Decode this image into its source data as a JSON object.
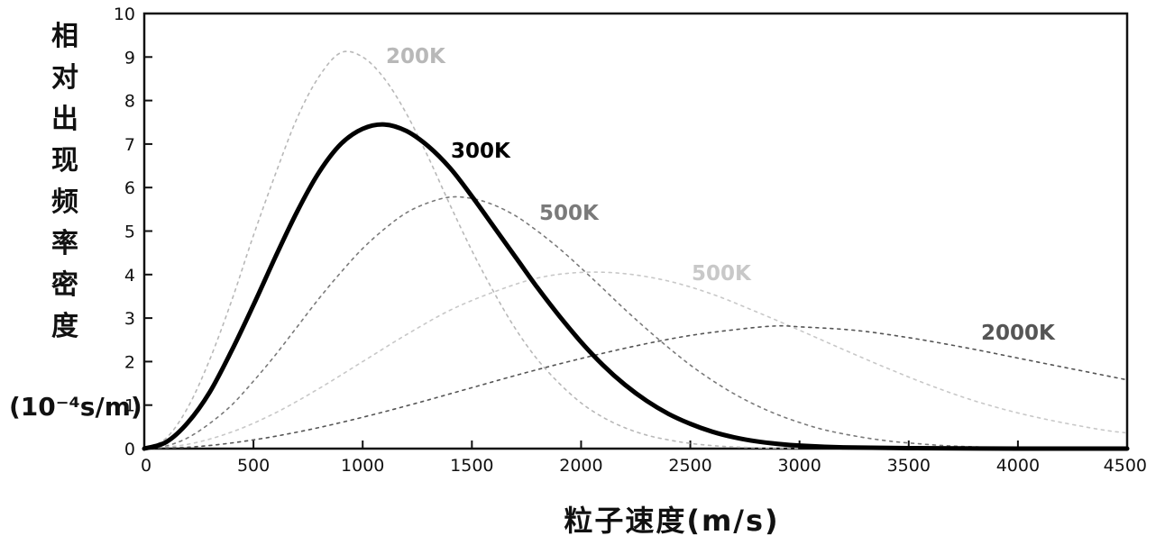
{
  "chart_data": {
    "type": "line",
    "xlabel": "粒子速度(m/s)",
    "ylabel": "相对出现频率密度",
    "ylabel_unit": "(10⁻⁴s/m)",
    "xlim": [
      0,
      4500
    ],
    "ylim": [
      0,
      10
    ],
    "x_ticks": [
      0,
      500,
      1000,
      1500,
      2000,
      2500,
      3000,
      3500,
      4000,
      4500
    ],
    "y_ticks": [
      0,
      1,
      2,
      3,
      4,
      5,
      6,
      7,
      8,
      9,
      10
    ],
    "grid": false,
    "series": [
      {
        "name": "200K",
        "color": "#b8b8b8",
        "style": "dotted",
        "x": [
          0,
          100,
          200,
          300,
          400,
          500,
          600,
          700,
          800,
          900,
          1000,
          1100,
          1200,
          1300,
          1400,
          1500,
          1600,
          1700,
          1800,
          1900,
          2000,
          2100,
          2200,
          2300,
          2400,
          2500,
          2600,
          2700,
          2800,
          2900,
          3000
        ],
        "values": [
          0,
          0.24,
          0.95,
          2.05,
          3.4,
          4.9,
          6.3,
          7.6,
          8.55,
          9.1,
          9.0,
          8.5,
          7.7,
          6.7,
          5.6,
          4.55,
          3.6,
          2.75,
          2.05,
          1.5,
          1.05,
          0.72,
          0.48,
          0.31,
          0.2,
          0.12,
          0.07,
          0.04,
          0.02,
          0.01,
          0.005
        ]
      },
      {
        "name": "300K",
        "color": "#000000",
        "style": "solid",
        "x": [
          0,
          100,
          200,
          300,
          400,
          500,
          600,
          700,
          800,
          900,
          1000,
          1100,
          1200,
          1300,
          1400,
          1500,
          1600,
          1700,
          1800,
          1900,
          2000,
          2100,
          2200,
          2300,
          2400,
          2500,
          2600,
          2700,
          2800,
          2900,
          3000,
          3200,
          3500,
          4000,
          4500
        ],
        "values": [
          0,
          0.15,
          0.6,
          1.3,
          2.25,
          3.3,
          4.4,
          5.45,
          6.35,
          7.0,
          7.35,
          7.45,
          7.3,
          6.95,
          6.45,
          5.8,
          5.1,
          4.4,
          3.7,
          3.05,
          2.45,
          1.92,
          1.47,
          1.1,
          0.8,
          0.57,
          0.39,
          0.26,
          0.17,
          0.11,
          0.07,
          0.03,
          0.01,
          0.0,
          0.0
        ]
      },
      {
        "name": "500K",
        "color": "#7a7a7a",
        "style": "dotted",
        "x": [
          0,
          100,
          200,
          300,
          400,
          500,
          600,
          700,
          800,
          900,
          1000,
          1100,
          1200,
          1300,
          1400,
          1500,
          1600,
          1700,
          1800,
          1900,
          2000,
          2100,
          2200,
          2300,
          2400,
          2500,
          2600,
          2700,
          2800,
          2900,
          3000,
          3100,
          3200,
          3300,
          3400,
          3500,
          3700,
          4000,
          4500
        ],
        "values": [
          0,
          0.06,
          0.25,
          0.58,
          1.0,
          1.55,
          2.15,
          2.8,
          3.45,
          4.05,
          4.6,
          5.05,
          5.42,
          5.65,
          5.78,
          5.75,
          5.6,
          5.35,
          5.0,
          4.6,
          4.15,
          3.68,
          3.2,
          2.75,
          2.32,
          1.92,
          1.57,
          1.26,
          1.0,
          0.78,
          0.6,
          0.45,
          0.34,
          0.25,
          0.18,
          0.13,
          0.06,
          0.02,
          0.0
        ]
      },
      {
        "name": "500K",
        "color": "#c8c8c8",
        "style": "dotted",
        "x": [
          0,
          200,
          400,
          600,
          800,
          1000,
          1200,
          1400,
          1600,
          1800,
          2000,
          2200,
          2400,
          2600,
          2800,
          3000,
          3200,
          3400,
          3600,
          3800,
          4000,
          4200,
          4400,
          4500
        ],
        "values": [
          0,
          0.1,
          0.38,
          0.82,
          1.38,
          2.0,
          2.62,
          3.18,
          3.6,
          3.92,
          4.05,
          4.02,
          3.85,
          3.55,
          3.15,
          2.72,
          2.28,
          1.85,
          1.45,
          1.1,
          0.82,
          0.6,
          0.42,
          0.36
        ]
      },
      {
        "name": "2000K",
        "color": "#555555",
        "style": "dotted",
        "x": [
          0,
          250,
          500,
          750,
          1000,
          1250,
          1500,
          1750,
          2000,
          2250,
          2500,
          2750,
          2900,
          3000,
          3250,
          3500,
          3750,
          4000,
          4250,
          4500
        ],
        "values": [
          0,
          0.05,
          0.2,
          0.43,
          0.72,
          1.05,
          1.4,
          1.75,
          2.07,
          2.36,
          2.6,
          2.76,
          2.82,
          2.8,
          2.72,
          2.55,
          2.33,
          2.08,
          1.83,
          1.58
        ]
      }
    ],
    "annotations": [
      {
        "text": "200K",
        "series": 0
      },
      {
        "text": "300K",
        "series": 1
      },
      {
        "text": "500K",
        "series": 2
      },
      {
        "text": "500K",
        "series": 3
      },
      {
        "text": "2000K",
        "series": 4
      }
    ]
  }
}
